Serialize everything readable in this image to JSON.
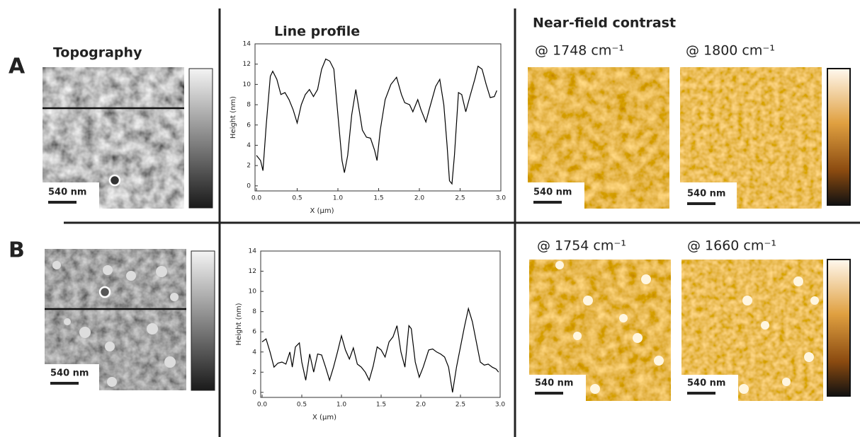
{
  "headings": {
    "topography": "Topography",
    "line_profile": "Line profile",
    "near_field": "Near-field contrast"
  },
  "rows": [
    {
      "label": "A",
      "topography_scale_bar": "540 nm",
      "near_field": [
        {
          "wavenumber": "@ 1748 cm⁻¹",
          "scale_bar": "540 nm"
        },
        {
          "wavenumber": "@ 1800 cm⁻¹",
          "scale_bar": "540 nm"
        }
      ]
    },
    {
      "label": "B",
      "topography_scale_bar": "540 nm",
      "near_field": [
        {
          "wavenumber": "@ 1754 cm⁻¹",
          "scale_bar": "540 nm"
        },
        {
          "wavenumber": "@ 1660 cm⁻¹",
          "scale_bar": "540 nm"
        }
      ]
    }
  ],
  "chart_data": [
    {
      "type": "line",
      "x_label": "X (µm)",
      "y_label": "Height (nm)",
      "x": [
        0.0,
        0.05,
        0.08,
        0.12,
        0.17,
        0.2,
        0.25,
        0.3,
        0.35,
        0.4,
        0.45,
        0.5,
        0.55,
        0.6,
        0.65,
        0.7,
        0.75,
        0.8,
        0.85,
        0.9,
        0.95,
        1.0,
        1.05,
        1.08,
        1.12,
        1.17,
        1.22,
        1.27,
        1.3,
        1.35,
        1.4,
        1.45,
        1.48,
        1.52,
        1.58,
        1.65,
        1.72,
        1.78,
        1.82,
        1.88,
        1.92,
        1.98,
        2.02,
        2.08,
        2.12,
        2.2,
        2.25,
        2.3,
        2.34,
        2.37,
        2.4,
        2.43,
        2.48,
        2.52,
        2.57,
        2.62,
        2.68,
        2.72,
        2.77,
        2.82,
        2.87,
        2.92,
        2.95
      ],
      "series": [
        {
          "color": "#000000",
          "values": [
            3.0,
            2.5,
            1.5,
            6,
            10.8,
            11.3,
            10.5,
            9,
            9.2,
            8.5,
            7.5,
            6.2,
            8,
            9,
            9.5,
            8.8,
            9.5,
            11.5,
            12.5,
            12.3,
            11.5,
            7,
            2.5,
            1.3,
            3,
            7,
            9.5,
            7,
            5.5,
            4.8,
            4.7,
            3.5,
            2.5,
            5.5,
            8.5,
            10,
            10.7,
            9,
            8.2,
            8,
            7.3,
            8.5,
            7.5,
            6.3,
            7.5,
            9.8,
            10.5,
            8,
            4,
            0.5,
            0.2,
            3,
            9.2,
            9,
            7.3,
            8.8,
            10.5,
            11.8,
            11.5,
            10,
            8.7,
            8.8,
            9.4
          ]
        }
      ],
      "xlim": [
        0,
        3
      ],
      "ylim": [
        -0.5,
        14
      ],
      "xticks": [
        {
          "value": 0,
          "label": "0.0"
        },
        0.5,
        {
          "value": 1,
          "label": "1.0"
        },
        1.5,
        {
          "value": 2,
          "label": "2.0"
        },
        2.5,
        {
          "value": 3,
          "label": "3.0"
        }
      ],
      "yticks": [
        0,
        2,
        4,
        6,
        8,
        10,
        12,
        14
      ]
    },
    {
      "type": "line",
      "x_label": "X (µm)",
      "y_label": "Height (nm)",
      "x": [
        0.0,
        0.05,
        0.1,
        0.15,
        0.2,
        0.25,
        0.3,
        0.35,
        0.38,
        0.42,
        0.47,
        0.5,
        0.55,
        0.6,
        0.65,
        0.7,
        0.75,
        0.8,
        0.85,
        0.9,
        0.95,
        1.0,
        1.05,
        1.1,
        1.15,
        1.2,
        1.25,
        1.3,
        1.35,
        1.4,
        1.45,
        1.5,
        1.55,
        1.6,
        1.65,
        1.7,
        1.75,
        1.8,
        1.85,
        1.88,
        1.93,
        1.98,
        2.03,
        2.1,
        2.15,
        2.2,
        2.25,
        2.3,
        2.35,
        2.4,
        2.45,
        2.5,
        2.55,
        2.6,
        2.65,
        2.7,
        2.75,
        2.8,
        2.85,
        2.9,
        2.95,
        2.98
      ],
      "series": [
        {
          "color": "#000000",
          "values": [
            5,
            5.3,
            4,
            2.5,
            2.9,
            3,
            2.8,
            4,
            2.5,
            4.5,
            4.9,
            3,
            1.2,
            3.8,
            2,
            3.8,
            3.7,
            2.5,
            1.2,
            2.5,
            4,
            5.6,
            4.2,
            3.3,
            4.4,
            2.8,
            2.5,
            2,
            1.2,
            2.6,
            4.5,
            4.2,
            3.5,
            5,
            5.5,
            6.6,
            4,
            2.5,
            6.6,
            6.3,
            3,
            1.5,
            2.5,
            4.2,
            4.3,
            4.0,
            3.8,
            3.5,
            2.5,
            0,
            2.5,
            4.5,
            6.5,
            8.3,
            7,
            5,
            3,
            2.7,
            2.8,
            2.5,
            2.3,
            2
          ]
        }
      ],
      "xlim": [
        0,
        3
      ],
      "ylim": [
        -0.5,
        14
      ],
      "xticks": [
        {
          "value": 0,
          "label": "0.0"
        },
        0.5,
        {
          "value": 1,
          "label": "1.0"
        },
        1.5,
        {
          "value": 2,
          "label": "2.0"
        },
        2.5,
        {
          "value": 3,
          "label": "3.0"
        }
      ],
      "yticks": [
        0,
        2,
        4,
        6,
        8,
        10,
        12,
        14
      ]
    }
  ]
}
